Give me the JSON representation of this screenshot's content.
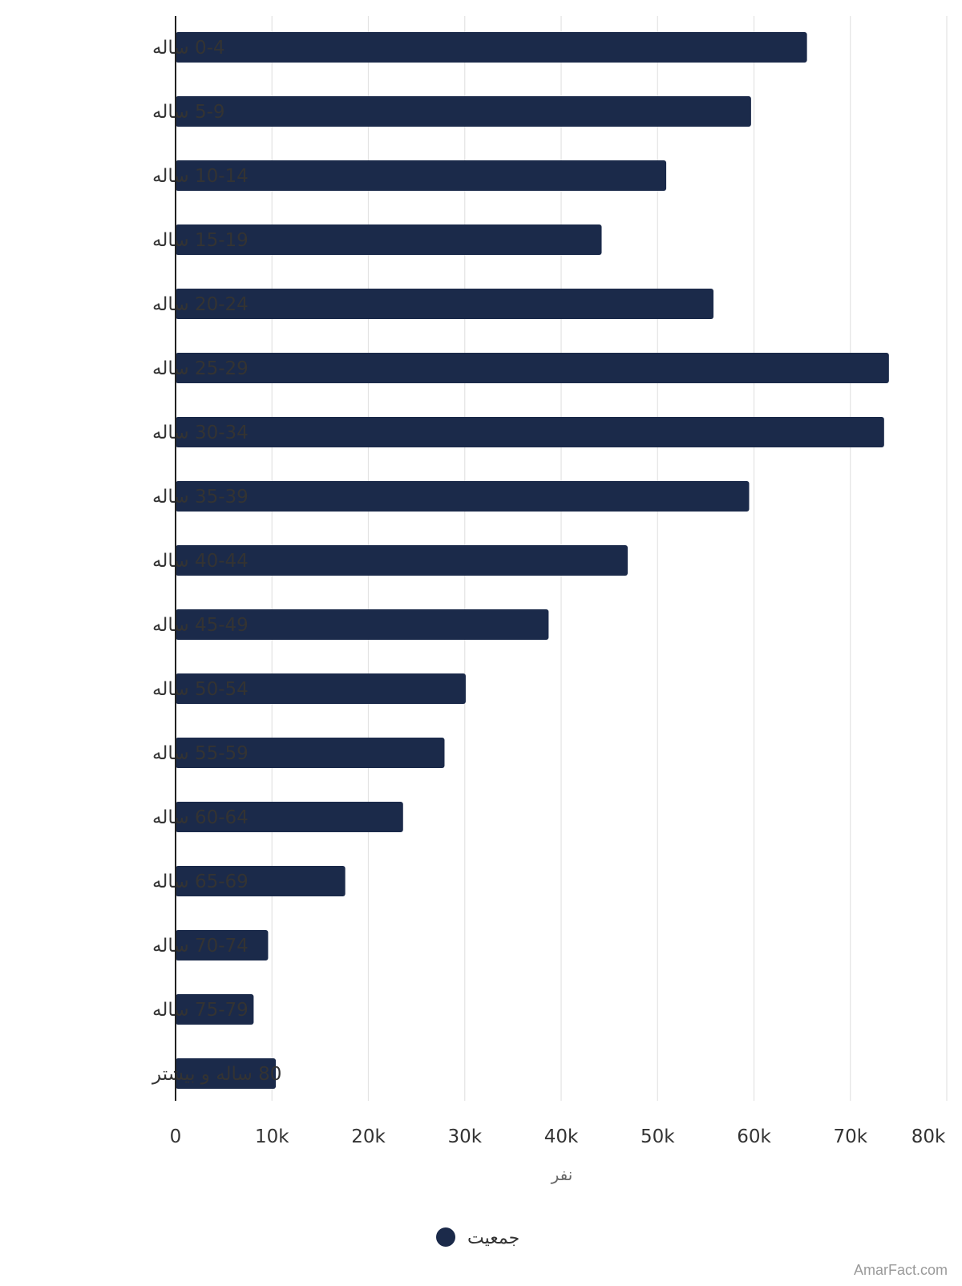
{
  "chart_data": {
    "type": "bar",
    "orientation": "horizontal",
    "categories": [
      "0-4 ساله",
      "5-9 ساله",
      "10-14 ساله",
      "15-19 ساله",
      "20-24 ساله",
      "25-29 ساله",
      "30-34 ساله",
      "35-39 ساله",
      "40-44 ساله",
      "45-49 ساله",
      "50-54 ساله",
      "55-59 ساله",
      "60-64 ساله",
      "65-69 ساله",
      "70-74 ساله",
      "75-79 ساله",
      "80 ساله و بیشتر"
    ],
    "series": [
      {
        "name": "جمعیت",
        "color": "#1b2a4a",
        "values": [
          65500,
          59700,
          50900,
          44200,
          55800,
          74000,
          73500,
          59500,
          46900,
          38700,
          30100,
          27900,
          23600,
          17600,
          9600,
          8100,
          10400
        ]
      }
    ],
    "xlabel": "نفر",
    "ylabel": "",
    "xlim": [
      0,
      80000
    ],
    "xticks": [
      0,
      10000,
      20000,
      30000,
      40000,
      50000,
      60000,
      70000,
      80000
    ],
    "xtick_labels": [
      "0",
      "10k",
      "20k",
      "30k",
      "40k",
      "50k",
      "60k",
      "70k",
      "80k"
    ],
    "grid": true,
    "legend_position": "bottom"
  },
  "watermark": "AmarFact.com",
  "colors": {
    "bar": "#1b2a4a",
    "grid": "#e3e3e3",
    "axis": "#222222"
  }
}
